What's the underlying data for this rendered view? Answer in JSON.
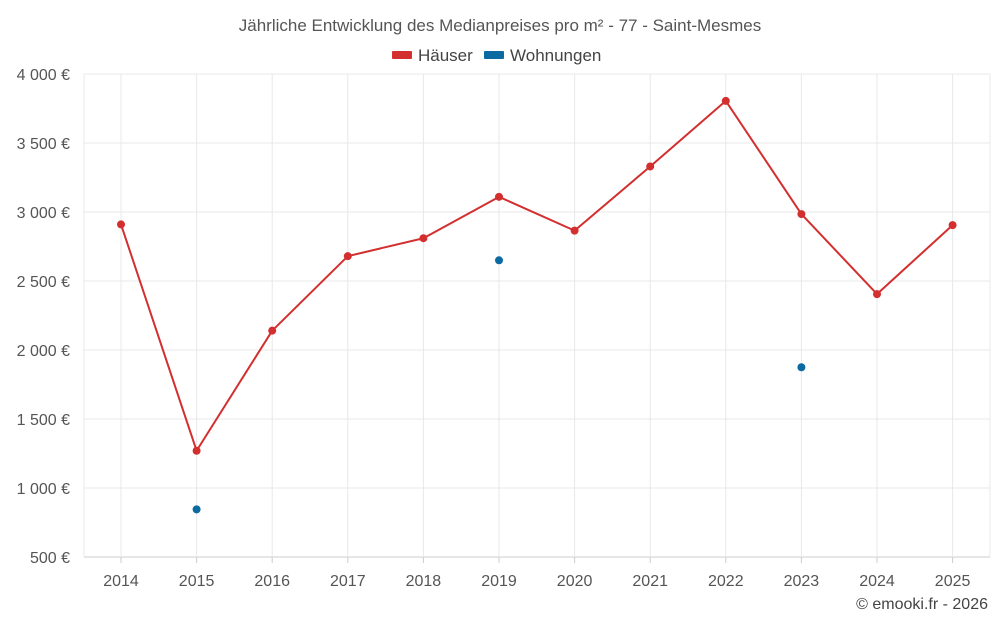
{
  "chart_data": {
    "type": "line",
    "title": "Jährliche Entwicklung des Medianpreises pro m² - 77 - Saint-Mesmes",
    "x": [
      "2014",
      "2015",
      "2016",
      "2017",
      "2018",
      "2019",
      "2020",
      "2021",
      "2022",
      "2023",
      "2024",
      "2025"
    ],
    "y_ticks": [
      "500 €",
      "1 000 €",
      "1 500 €",
      "2 000 €",
      "2 500 €",
      "3 000 €",
      "3 500 €",
      "4 000 €"
    ],
    "ylim": [
      500,
      4000
    ],
    "xlabel": "",
    "ylabel": "",
    "grid": true,
    "legend_position": "top-center",
    "series": [
      {
        "name": "Häuser",
        "color": "#d32f2f",
        "values": [
          2910,
          1270,
          2140,
          2680,
          2810,
          3110,
          2865,
          3330,
          3805,
          2985,
          2405,
          2905
        ]
      },
      {
        "name": "Wohnungen",
        "color": "#0a6aa1",
        "values": [
          null,
          845,
          null,
          null,
          null,
          2650,
          null,
          null,
          null,
          1875,
          null,
          null
        ]
      }
    ]
  },
  "credit": "© emooki.fr - 2026"
}
